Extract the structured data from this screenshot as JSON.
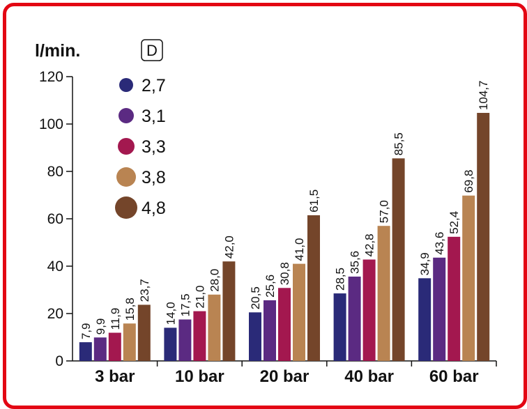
{
  "chart_data": {
    "type": "bar",
    "unit_label": "l/min.",
    "legend_title": "D",
    "categories": [
      "3 bar",
      "10 bar",
      "20 bar",
      "40 bar",
      "60 bar"
    ],
    "series": [
      {
        "name": "2,7",
        "color": "#2a2a78",
        "values": [
          7.9,
          14.0,
          20.5,
          28.5,
          34.9
        ],
        "labels": [
          "7,9",
          "14,0",
          "20,5",
          "28,5",
          "34,9"
        ]
      },
      {
        "name": "3,1",
        "color": "#5b2a82",
        "values": [
          9.9,
          17.5,
          25.6,
          35.6,
          43.6
        ],
        "labels": [
          "9,9",
          "17,5",
          "25,6",
          "35,6",
          "43,6"
        ]
      },
      {
        "name": "3,3",
        "color": "#a3184f",
        "values": [
          11.9,
          21.0,
          30.8,
          42.8,
          52.4
        ],
        "labels": [
          "11,9",
          "21,0",
          "30,8",
          "42,8",
          "52,4"
        ]
      },
      {
        "name": "3,8",
        "color": "#b98452",
        "values": [
          15.8,
          28.0,
          41.0,
          57.0,
          69.8
        ],
        "labels": [
          "15,8",
          "28,0",
          "41,0",
          "57,0",
          "69,8"
        ]
      },
      {
        "name": "4,8",
        "color": "#74452a",
        "values": [
          23.7,
          42.0,
          61.5,
          85.5,
          104.7
        ],
        "labels": [
          "23,7",
          "42,0",
          "61,5",
          "85,5",
          "104,7"
        ]
      }
    ],
    "yticks": [
      "0",
      "20",
      "40",
      "60",
      "80",
      "100",
      "120"
    ],
    "ylim": [
      0,
      120
    ],
    "grid": false,
    "legend_position": "top-left"
  }
}
